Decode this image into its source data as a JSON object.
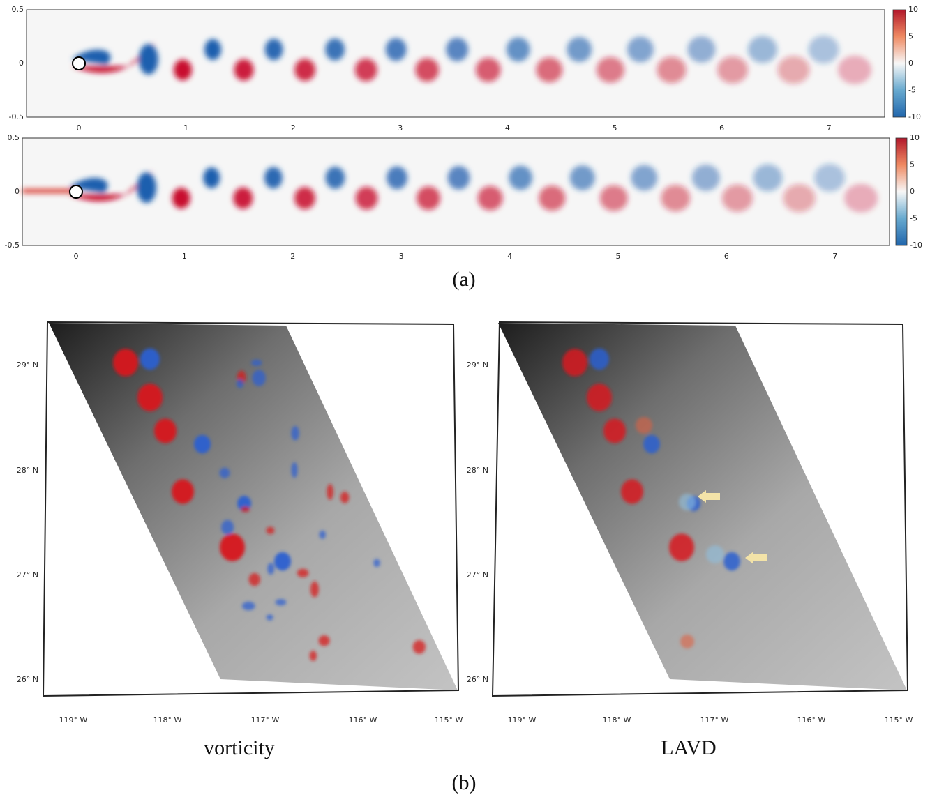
{
  "panel_a": {
    "label": "(a)",
    "plots": [
      {
        "yticks": [
          "0.5",
          "0",
          "-0.5"
        ],
        "xticks": [
          "0",
          "1",
          "2",
          "3",
          "4",
          "5",
          "6",
          "7"
        ],
        "colorbar_ticks": [
          "10",
          "5",
          "0",
          "-5",
          "-10"
        ]
      },
      {
        "yticks": [
          "0.5",
          "0",
          "-0.5"
        ],
        "xticks": [
          "0",
          "1",
          "2",
          "3",
          "4",
          "5",
          "6",
          "7"
        ],
        "colorbar_ticks": [
          "10",
          "5",
          "0",
          "-5",
          "-10"
        ]
      }
    ]
  },
  "panel_b": {
    "label": "(b)",
    "maps": [
      {
        "caption": "vorticity",
        "lat_labels": [
          "29° N",
          "28° N",
          "27° N",
          "26° N"
        ],
        "lon_labels": [
          "119° W",
          "118° W",
          "117° W",
          "116° W",
          "115° W"
        ]
      },
      {
        "caption": "LAVD",
        "lat_labels": [
          "29° N",
          "28° N",
          "27° N",
          "26° N"
        ],
        "lon_labels": [
          "119° W",
          "118° W",
          "117° W",
          "116° W",
          "115° W"
        ]
      }
    ]
  }
}
